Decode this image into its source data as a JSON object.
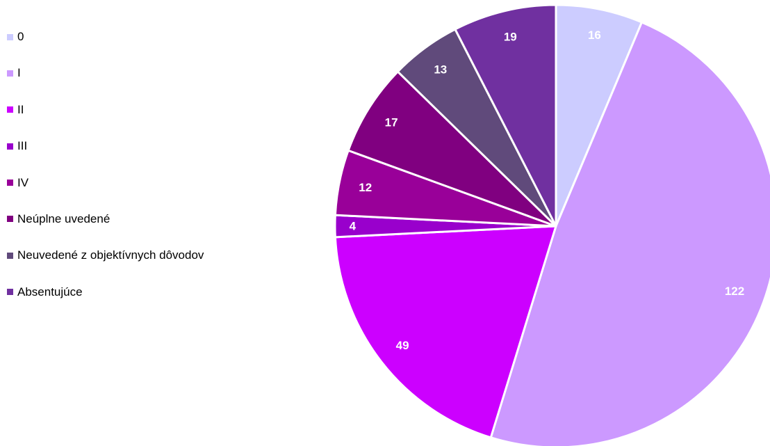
{
  "chart_data": {
    "type": "pie",
    "categories": [
      "0",
      "I",
      "II",
      "III",
      "IV",
      "Neúplne uvedené",
      "Neuvedené z objektívnych dôvodov",
      "Absentujúce"
    ],
    "values": [
      16,
      122,
      49,
      4,
      12,
      17,
      13,
      19
    ],
    "data_labels": [
      "16",
      "122",
      "49",
      "4",
      "12",
      "17",
      "13",
      "19"
    ],
    "colors": [
      "#CCCCFF",
      "#CC99FF",
      "#CC00FF",
      "#9900CC",
      "#990099",
      "#800080",
      "#604A7B",
      "#7030A0"
    ],
    "legend_position": "left",
    "start_angle": "12 o'clock",
    "direction": "clockwise"
  }
}
